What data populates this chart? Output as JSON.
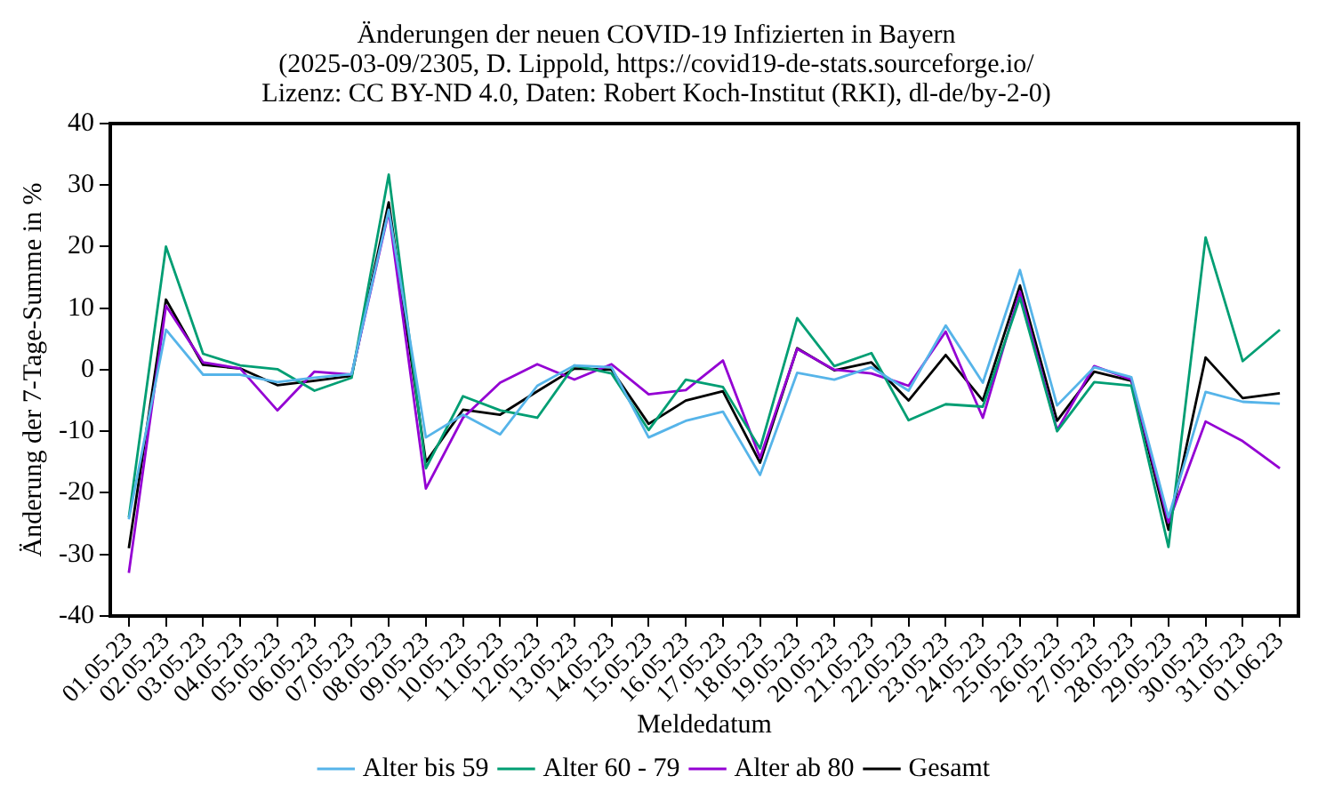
{
  "chart_data": {
    "type": "line",
    "title": [
      "Änderungen der neuen COVID-19 Infizierten in Bayern",
      "(2025-03-09/2305, D. Lippold, https://covid19-de-stats.sourceforge.io/",
      "Lizenz: CC BY-ND 4.0, Daten: Robert Koch-Institut (RKI), dl-de/by-2-0)"
    ],
    "xlabel": "Meldedatum",
    "ylabel": "Änderung der 7-Tage-Summe in %",
    "categories": [
      "01.05.23",
      "02.05.23",
      "03.05.23",
      "04.05.23",
      "05.05.23",
      "06.05.23",
      "07.05.23",
      "08.05.23",
      "09.05.23",
      "10.05.23",
      "11.05.23",
      "12.05.23",
      "13.05.23",
      "14.05.23",
      "15.05.23",
      "16.05.23",
      "17.05.23",
      "18.05.23",
      "19.05.23",
      "20.05.23",
      "21.05.23",
      "22.05.23",
      "23.05.23",
      "24.05.23",
      "25.05.23",
      "26.05.23",
      "27.05.23",
      "28.05.23",
      "29.05.23",
      "30.05.23",
      "31.05.23",
      "01.06.23"
    ],
    "series": [
      {
        "name": "Alter bis 59",
        "color": "#56b4e9",
        "values": [
          -24.3,
          6.5,
          -0.8,
          -0.8,
          -2,
          -1.3,
          -0.7,
          26,
          -11,
          -7.3,
          -10.5,
          -2.6,
          0.7,
          0.4,
          -11,
          -8.3,
          -6.8,
          -17.1,
          -0.5,
          -1.6,
          0.4,
          -3.4,
          7.2,
          -2.1,
          16.2,
          -5.8,
          0.4,
          -1.2,
          -24,
          -3.6,
          -5.2,
          -5.5
        ]
      },
      {
        "name": "Alter 60 - 79",
        "color": "#009e73",
        "values": [
          -24,
          20,
          2.6,
          0.7,
          0.1,
          -3.4,
          -1.3,
          31.7,
          -16,
          -4.3,
          -6.6,
          -7.8,
          0.7,
          -0.6,
          -9.8,
          -1.6,
          -2.8,
          -12.8,
          8.4,
          0.6,
          2.7,
          -8.2,
          -5.6,
          -6,
          11.7,
          -10,
          -2,
          -2.6,
          -28.8,
          21.5,
          1.4,
          6.5
        ]
      },
      {
        "name": "Alter ab 80",
        "color": "#9400d3",
        "values": [
          -33,
          10.4,
          1.2,
          0.2,
          -6.6,
          -0.3,
          -0.8,
          25.7,
          -19.3,
          -7.8,
          -2.1,
          0.9,
          -1.6,
          0.9,
          -4,
          -3.3,
          1.5,
          -14.3,
          3.4,
          0,
          -0.6,
          -2.6,
          6.2,
          -7.8,
          12.7,
          -9.8,
          0.6,
          -1.6,
          -24.8,
          -8.4,
          -11.6,
          -16
        ]
      },
      {
        "name": "Gesamt",
        "color": "#000000",
        "values": [
          -29,
          11.4,
          0.8,
          0.2,
          -2.5,
          -1.8,
          -1,
          27.2,
          -15,
          -6.5,
          -7.3,
          -3.5,
          0.2,
          0,
          -8.8,
          -5,
          -3.5,
          -15.1,
          3.5,
          -0.1,
          1.2,
          -5,
          2.4,
          -5,
          13.7,
          -8.3,
          -0.3,
          -1.8,
          -26,
          2,
          -4.6,
          -3.8
        ]
      }
    ],
    "ylim": [
      -40,
      40
    ],
    "yticks": [
      -40,
      -30,
      -20,
      -10,
      0,
      10,
      20,
      30,
      40
    ],
    "grid": false,
    "legend": "bottom",
    "marker": "none",
    "line_style": "solid"
  }
}
